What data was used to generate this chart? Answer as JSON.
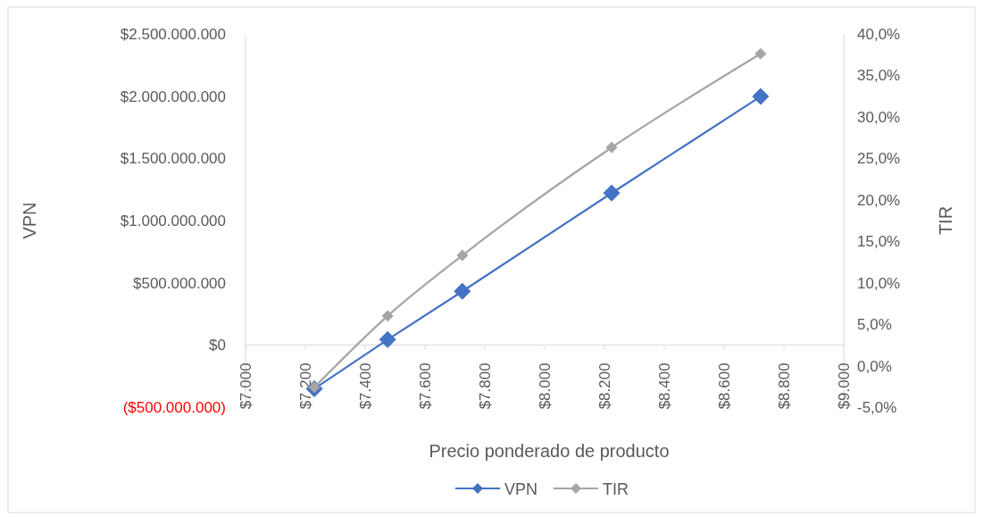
{
  "chart_data": {
    "type": "line",
    "xlabel": "Precio ponderado de producto",
    "ylabel": "VPN",
    "y2label": "TIR",
    "x": [
      7230,
      7475,
      7725,
      8224,
      8722
    ],
    "series": [
      {
        "name": "VPN",
        "color": "#4472c4",
        "values": [
          -352000000,
          43000000,
          431000000,
          1221000000,
          1997000000
        ]
      },
      {
        "name": "TIR",
        "color": "#a5a5a5",
        "axis": "y2",
        "values": [
          -2.6,
          6.0,
          13.3,
          26.3,
          37.6
        ]
      }
    ],
    "xlim": [
      7000,
      9000
    ],
    "xticks": [
      {
        "value": 7000,
        "label": "$7.000"
      },
      {
        "value": 7200,
        "label": "$7.200"
      },
      {
        "value": 7400,
        "label": "$7.400"
      },
      {
        "value": 7600,
        "label": "$7.600"
      },
      {
        "value": 7800,
        "label": "$7.800"
      },
      {
        "value": 8000,
        "label": "$8.000"
      },
      {
        "value": 8200,
        "label": "$8.200"
      },
      {
        "value": 8400,
        "label": "$8.400"
      },
      {
        "value": 8600,
        "label": "$8.600"
      },
      {
        "value": 8800,
        "label": "$8.800"
      },
      {
        "value": 9000,
        "label": "$9.000"
      }
    ],
    "ylim": [
      -500000000,
      2500000000
    ],
    "yticks": [
      {
        "value": -500000000,
        "label": "($500.000.000)"
      },
      {
        "value": 0,
        "label": "$0"
      },
      {
        "value": 500000000,
        "label": "$500.000.000"
      },
      {
        "value": 1000000000,
        "label": "$1.000.000.000"
      },
      {
        "value": 1500000000,
        "label": "$1.500.000.000"
      },
      {
        "value": 2000000000,
        "label": "$2.000.000.000"
      },
      {
        "value": 2500000000,
        "label": "$2.500.000.000"
      }
    ],
    "y2lim": [
      -5,
      40
    ],
    "y2ticks": [
      {
        "value": -5,
        "label": "-5,0%"
      },
      {
        "value": 0,
        "label": "0,0%"
      },
      {
        "value": 5,
        "label": "5,0%"
      },
      {
        "value": 10,
        "label": "10,0%"
      },
      {
        "value": 15,
        "label": "15,0%"
      },
      {
        "value": 20,
        "label": "20,0%"
      },
      {
        "value": 25,
        "label": "25,0%"
      },
      {
        "value": 30,
        "label": "30,0%"
      },
      {
        "value": 35,
        "label": "35,0%"
      },
      {
        "value": 40,
        "label": "40,0%"
      }
    ],
    "marker": "diamond",
    "legend": "bottom",
    "grid": false
  }
}
